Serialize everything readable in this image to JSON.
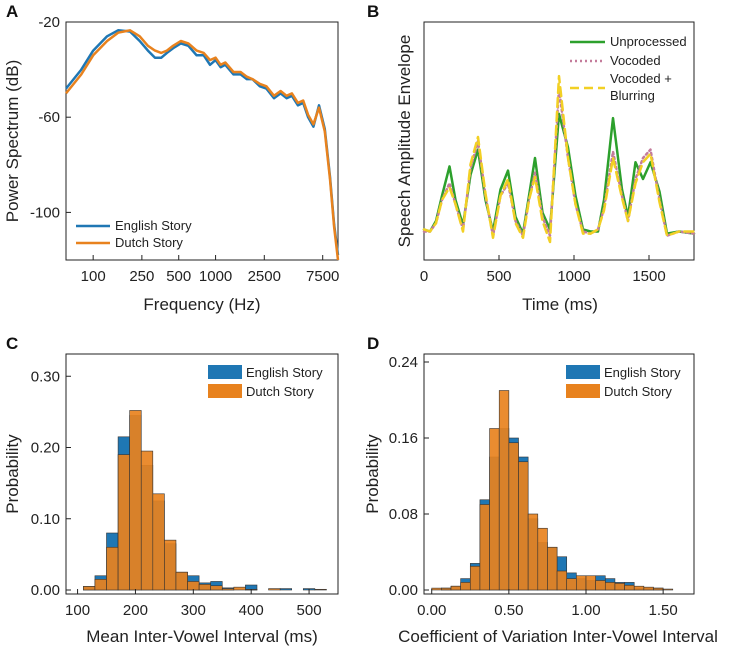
{
  "chart_data": [
    {
      "panel": "A",
      "type": "line",
      "xlabel": "Frequency (Hz)",
      "ylabel": "Power Spectrum (dB)",
      "xscale": "log",
      "xlim": [
        60,
        10000
      ],
      "ylim": [
        -120,
        -20
      ],
      "xticks": [
        100,
        250,
        500,
        1000,
        2500,
        7500
      ],
      "xtick_labels": [
        "100",
        "250",
        "500",
        "1000",
        "2500",
        "7500"
      ],
      "yticks": [
        -20,
        -60,
        -100
      ],
      "ytick_labels": [
        "-20",
        "-60",
        "-100"
      ],
      "legend_position": "bottom-left",
      "colors": {
        "English Story": "#1f77b4",
        "Dutch Story": "#e8821e"
      },
      "series": [
        {
          "name": "English Story",
          "x": [
            60,
            80,
            100,
            130,
            160,
            200,
            240,
            280,
            320,
            360,
            400,
            450,
            520,
            600,
            700,
            800,
            900,
            1000,
            1100,
            1200,
            1400,
            1600,
            1800,
            2000,
            2300,
            2600,
            3000,
            3400,
            3800,
            4200,
            4700,
            5200,
            5700,
            6300,
            7000,
            7800,
            8600,
            9300,
            10000
          ],
          "y": [
            -48,
            -40,
            -32,
            -26,
            -23.5,
            -24,
            -28,
            -32,
            -35,
            -35,
            -33,
            -31,
            -29,
            -30,
            -34,
            -34,
            -38,
            -36,
            -39,
            -38,
            -42,
            -42,
            -44,
            -44,
            -47,
            -48,
            -52,
            -50,
            -52,
            -51,
            -55,
            -54,
            -60,
            -64,
            -55,
            -65,
            -85,
            -105,
            -118
          ]
        },
        {
          "name": "Dutch Story",
          "x": [
            60,
            80,
            100,
            130,
            160,
            200,
            240,
            280,
            320,
            360,
            400,
            450,
            520,
            600,
            700,
            800,
            900,
            1000,
            1100,
            1200,
            1400,
            1600,
            1800,
            2000,
            2300,
            2600,
            3000,
            3400,
            3800,
            4200,
            4700,
            5200,
            5700,
            6300,
            7000,
            7800,
            8600,
            9300,
            10000
          ],
          "y": [
            -50,
            -42,
            -34,
            -28,
            -24.5,
            -23.5,
            -26,
            -30,
            -32,
            -33,
            -32,
            -30,
            -28,
            -29,
            -32,
            -33,
            -36,
            -35,
            -38,
            -37,
            -41,
            -41,
            -43,
            -44,
            -46,
            -47,
            -51,
            -49,
            -51,
            -50,
            -54,
            -53,
            -59,
            -63,
            -56,
            -66,
            -86,
            -106,
            -120
          ]
        }
      ]
    },
    {
      "panel": "B",
      "type": "line",
      "xlabel": "Time (ms)",
      "ylabel": "Speech Amplitude Envelope",
      "xlim": [
        0,
        1800
      ],
      "ylim": [
        0,
        1
      ],
      "xticks": [
        0,
        500,
        1000,
        1500
      ],
      "xtick_labels": [
        "0",
        "500",
        "1000",
        "1500"
      ],
      "legend_position": "top-right",
      "colors": {
        "Unprocessed": "#2ca02c",
        "Vocoded": "#c47c9b",
        "Vocoded + Blurring": "#f2d024"
      },
      "series": [
        {
          "name": "Unprocessed",
          "style": "solid",
          "x": [
            0,
            40,
            80,
            120,
            170,
            210,
            260,
            310,
            360,
            410,
            460,
            510,
            560,
            610,
            660,
            700,
            740,
            790,
            840,
            900,
            960,
            1010,
            1060,
            1110,
            1160,
            1200,
            1260,
            1320,
            1360,
            1410,
            1460,
            1510,
            1570,
            1620,
            1700,
            1800
          ],
          "y": [
            0.06,
            0.05,
            0.1,
            0.22,
            0.36,
            0.2,
            0.08,
            0.32,
            0.44,
            0.2,
            0.05,
            0.25,
            0.34,
            0.12,
            0.04,
            0.22,
            0.4,
            0.14,
            0.06,
            0.61,
            0.45,
            0.22,
            0.06,
            0.05,
            0.05,
            0.2,
            0.59,
            0.25,
            0.12,
            0.38,
            0.3,
            0.38,
            0.24,
            0.04,
            0.05,
            0.04
          ]
        },
        {
          "name": "Vocoded",
          "style": "dotted",
          "x": [
            0,
            40,
            80,
            120,
            170,
            210,
            260,
            310,
            360,
            410,
            460,
            510,
            560,
            610,
            660,
            700,
            740,
            790,
            840,
            900,
            960,
            1010,
            1060,
            1110,
            1160,
            1200,
            1260,
            1320,
            1360,
            1410,
            1460,
            1510,
            1570,
            1620,
            1700,
            1800
          ],
          "y": [
            0.05,
            0.05,
            0.09,
            0.2,
            0.28,
            0.18,
            0.06,
            0.35,
            0.48,
            0.22,
            0.03,
            0.22,
            0.28,
            0.1,
            0.03,
            0.2,
            0.33,
            0.12,
            0.03,
            0.73,
            0.4,
            0.18,
            0.05,
            0.04,
            0.06,
            0.16,
            0.43,
            0.22,
            0.1,
            0.3,
            0.4,
            0.44,
            0.2,
            0.03,
            0.05,
            0.04
          ]
        },
        {
          "name": "Vocoded + Blurring",
          "style": "dashed",
          "x": [
            0,
            40,
            80,
            120,
            170,
            210,
            260,
            310,
            360,
            410,
            460,
            510,
            560,
            610,
            660,
            700,
            740,
            790,
            840,
            900,
            960,
            1010,
            1060,
            1110,
            1160,
            1200,
            1260,
            1320,
            1360,
            1410,
            1460,
            1510,
            1570,
            1620,
            1700,
            1800
          ],
          "y": [
            0.06,
            0.05,
            0.09,
            0.2,
            0.26,
            0.18,
            0.05,
            0.37,
            0.5,
            0.23,
            0.02,
            0.22,
            0.3,
            0.09,
            0.02,
            0.2,
            0.31,
            0.1,
            0.0,
            0.79,
            0.4,
            0.18,
            0.04,
            0.04,
            0.06,
            0.15,
            0.4,
            0.21,
            0.1,
            0.28,
            0.38,
            0.42,
            0.19,
            0.03,
            0.05,
            0.05
          ]
        }
      ]
    },
    {
      "panel": "C",
      "type": "bar",
      "xlabel": "Mean Inter-Vowel Interval (ms)",
      "ylabel": "Probability",
      "xlim": [
        80,
        550
      ],
      "ylim": [
        0,
        0.32
      ],
      "xticks": [
        100,
        200,
        300,
        400,
        500
      ],
      "xtick_labels": [
        "100",
        "200",
        "300",
        "400",
        "500"
      ],
      "yticks": [
        0,
        0.1,
        0.2,
        0.3
      ],
      "ytick_labels": [
        "0.00",
        "0.10",
        "0.20",
        "0.30"
      ],
      "legend_position": "top-right",
      "bin_width": 20,
      "bin_starts": [
        110,
        130,
        150,
        170,
        190,
        210,
        230,
        250,
        270,
        290,
        310,
        330,
        350,
        370,
        390,
        410,
        430,
        450,
        470,
        490,
        510
      ],
      "colors": {
        "English Story": "#1f77b4",
        "Dutch Story": "#e8821e"
      },
      "series": [
        {
          "name": "English Story",
          "values": [
            0.005,
            0.02,
            0.08,
            0.215,
            0.245,
            0.175,
            0.125,
            0.065,
            0.025,
            0.02,
            0.01,
            0.012,
            0.003,
            0,
            0.007,
            0,
            0,
            0.002,
            0,
            0.002,
            0
          ]
        },
        {
          "name": "Dutch Story",
          "values": [
            0.005,
            0.015,
            0.06,
            0.19,
            0.252,
            0.195,
            0.135,
            0.07,
            0.025,
            0.012,
            0.008,
            0.006,
            0.002,
            0.004,
            0.001,
            0,
            0.002,
            0,
            0,
            0,
            0.001
          ]
        }
      ]
    },
    {
      "panel": "D",
      "type": "bar",
      "xlabel": "Coefficient of Variation Inter-Vowel Interval",
      "ylabel": "Probability",
      "xlim": [
        -0.05,
        1.7
      ],
      "ylim": [
        0,
        0.24
      ],
      "xticks": [
        0,
        0.5,
        1.0,
        1.5
      ],
      "xtick_labels": [
        "0.00",
        "0.50",
        "1.00",
        "1.50"
      ],
      "yticks": [
        0,
        0.08,
        0.16,
        0.24
      ],
      "ytick_labels": [
        "0.00",
        "0.08",
        "0.16",
        "0.24"
      ],
      "legend_position": "top-right",
      "bin_width": 0.0625,
      "bin_starts": [
        0.0,
        0.0625,
        0.125,
        0.1875,
        0.25,
        0.3125,
        0.375,
        0.4375,
        0.5,
        0.5625,
        0.625,
        0.6875,
        0.75,
        0.8125,
        0.875,
        0.9375,
        1.0,
        1.0625,
        1.125,
        1.1875,
        1.25,
        1.3125,
        1.375,
        1.4375,
        1.5
      ],
      "colors": {
        "English Story": "#1f77b4",
        "Dutch Story": "#e8821e"
      },
      "series": [
        {
          "name": "English Story",
          "values": [
            0,
            0.002,
            0.004,
            0.012,
            0.028,
            0.095,
            0.14,
            0.17,
            0.16,
            0.14,
            0.075,
            0.05,
            0.045,
            0.035,
            0.018,
            0.012,
            0.01,
            0.015,
            0.012,
            0.008,
            0.008,
            0.002,
            0.002,
            0.002,
            0
          ]
        },
        {
          "name": "Dutch Story",
          "values": [
            0.002,
            0.002,
            0.004,
            0.008,
            0.025,
            0.09,
            0.17,
            0.21,
            0.155,
            0.135,
            0.08,
            0.065,
            0.045,
            0.02,
            0.012,
            0.015,
            0.015,
            0.01,
            0.008,
            0.007,
            0.005,
            0.004,
            0.003,
            0.002,
            0.001
          ]
        }
      ]
    }
  ],
  "panels": [
    {
      "letter": "A",
      "xlabel": "Frequency (Hz)",
      "ylabel": "Power Spectrum (dB)",
      "legend": [
        "English Story",
        "Dutch Story"
      ]
    },
    {
      "letter": "B",
      "xlabel": "Time (ms)",
      "ylabel": "Speech Amplitude Envelope",
      "legend": [
        "Unprocessed",
        "Vocoded",
        "Vocoded +",
        "Blurring"
      ]
    },
    {
      "letter": "C",
      "xlabel": "Mean Inter-Vowel Interval (ms)",
      "ylabel": "Probability",
      "legend": [
        "English Story",
        "Dutch Story"
      ]
    },
    {
      "letter": "D",
      "xlabel": "Coefficient of Variation Inter-Vowel Interval",
      "ylabel": "Probability",
      "legend": [
        "English Story",
        "Dutch Story"
      ]
    }
  ]
}
